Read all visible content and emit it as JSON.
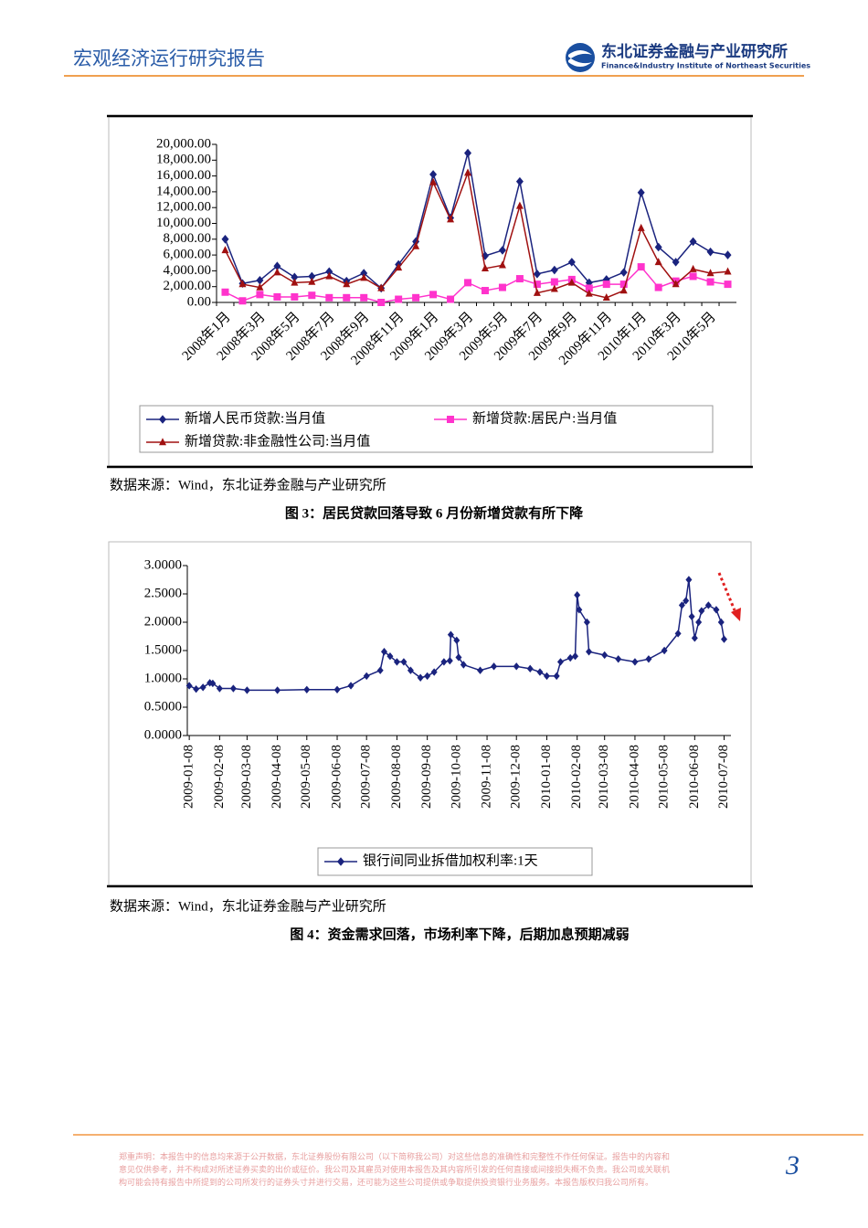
{
  "header": {
    "title": "宏观经济运行研究报告",
    "logo_cn": "东北证券金融与产业研究所",
    "logo_en": "Finance&Industry Institute of Northeast Securities"
  },
  "source_1": "数据来源：Wind，东北证券金融与产业研究所",
  "caption_1": "图 3：居民贷款回落导致 6 月份新增贷款有所下降",
  "source_2": "数据来源：Wind，东北证券金融与产业研究所",
  "caption_2": "图 4：资金需求回落，市场利率下降，后期加息预期减弱",
  "footer": {
    "disclaimer": [
      "郑重声明：本报告中的信息均来源于公开数据，东北证券股份有限公司（以下简称我公司）对这些信息的准确性和完整性不作任何保证。报告中的内容和",
      "意见仅供参考，并不构成对所述证券买卖的出价或征价。我公司及其雇员对使用本报告及其内容所引发的任何直接或间接损失概不负责。我公司或关联机",
      "构可能会持有报告中所提到的公司所发行的证券头寸并进行交易，还可能为这些公司提供或争取提供投资银行业务服务。本报告版权归我公司所有。"
    ],
    "page": "3"
  },
  "chart_data": [
    {
      "type": "line",
      "categories": [
        "2008年1月",
        null,
        "2008年3月",
        null,
        "2008年5月",
        null,
        "2008年7月",
        null,
        "2008年9月",
        null,
        "2008年11月",
        null,
        "2009年1月",
        null,
        "2009年3月",
        null,
        "2009年5月",
        null,
        "2009年7月",
        null,
        "2009年9月",
        null,
        "2009年11月",
        null,
        "2010年1月",
        null,
        "2010年3月",
        null,
        "2010年5月",
        null
      ],
      "ylim": [
        0,
        20000
      ],
      "yticks": [
        {
          "value": 0,
          "label": "0.00"
        },
        {
          "value": 2000,
          "label": "2,000.00"
        },
        {
          "value": 4000,
          "label": "4,000.00"
        },
        {
          "value": 6000,
          "label": "6,000.00"
        },
        {
          "value": 8000,
          "label": "8,000.00"
        },
        {
          "value": 10000,
          "label": "10,000.00"
        },
        {
          "value": 12000,
          "label": "12,000.00"
        },
        {
          "value": 14000,
          "label": "14,000.00"
        },
        {
          "value": 16000,
          "label": "16,000.00"
        },
        {
          "value": 18000,
          "label": "18,000.00"
        },
        {
          "value": 20000,
          "label": "20,000.00"
        }
      ],
      "series": [
        {
          "name": "新增人民币贷款:当月值",
          "color": "#1a237e",
          "marker": "diamond",
          "values": [
            8000,
            2400,
            2800,
            4600,
            3200,
            3300,
            3900,
            2700,
            3700,
            1800,
            4800,
            7700,
            16200,
            10700,
            18900,
            5900,
            6600,
            15300,
            3600,
            4100,
            5100,
            2500,
            2900,
            3800,
            13900,
            7000,
            5100,
            7700,
            6400,
            6000
          ]
        },
        {
          "name": "新增贷款:居民户:当月值",
          "color": "#ff33cc",
          "marker": "square",
          "values": [
            1300,
            200,
            1000,
            700,
            700,
            900,
            600,
            600,
            600,
            0,
            400,
            600,
            1000,
            400,
            2500,
            1500,
            1900,
            3000,
            2300,
            2600,
            2900,
            1800,
            2300,
            2300,
            4500,
            1900,
            2700,
            3300,
            2600,
            2300
          ]
        },
        {
          "name": "新增贷款:非金融性公司:当月值",
          "color": "#a01010",
          "marker": "triangle",
          "values": [
            6600,
            2300,
            1900,
            3800,
            2500,
            2600,
            3300,
            2300,
            3100,
            1800,
            4400,
            7100,
            15200,
            10500,
            16400,
            4300,
            4700,
            12200,
            1200,
            1700,
            2500,
            1100,
            600,
            1500,
            9400,
            5100,
            2300,
            4200,
            3700,
            3900
          ]
        }
      ]
    },
    {
      "type": "line",
      "xlim": [
        "2009-01-06",
        "2010-07-15"
      ],
      "xticks": [
        "2009-01-08",
        "2009-02-08",
        "2009-03-08",
        "2009-04-08",
        "2009-05-08",
        "2009-06-08",
        "2009-07-08",
        "2009-08-08",
        "2009-09-08",
        "2009-10-08",
        "2009-11-08",
        "2009-12-08",
        "2010-01-08",
        "2010-02-08",
        "2010-03-08",
        "2010-04-08",
        "2010-05-08",
        "2010-06-08",
        "2010-07-08"
      ],
      "ylim": [
        0,
        3
      ],
      "yticks": [
        {
          "value": 0,
          "label": "0.0000"
        },
        {
          "value": 0.5,
          "label": "0.5000"
        },
        {
          "value": 1,
          "label": "1.0000"
        },
        {
          "value": 1.5,
          "label": "1.5000"
        },
        {
          "value": 2,
          "label": "2.0000"
        },
        {
          "value": 2.5,
          "label": "2.5000"
        },
        {
          "value": 3,
          "label": "3.0000"
        }
      ],
      "series": [
        {
          "name": "银行间同业拆借加权利率:1天",
          "color": "#1a237e",
          "marker": "diamond",
          "x": [
            "2009-01-08",
            "2009-01-15",
            "2009-01-22",
            "2009-01-29",
            "2009-02-01",
            "2009-02-08",
            "2009-02-22",
            "2009-03-08",
            "2009-04-08",
            "2009-05-08",
            "2009-06-08",
            "2009-06-22",
            "2009-07-08",
            "2009-07-22",
            "2009-07-26",
            "2009-08-01",
            "2009-08-08",
            "2009-08-15",
            "2009-08-22",
            "2009-09-01",
            "2009-09-08",
            "2009-09-15",
            "2009-09-25",
            "2009-10-01",
            "2009-10-02",
            "2009-10-08",
            "2009-10-10",
            "2009-10-15",
            "2009-11-01",
            "2009-11-15",
            "2009-12-08",
            "2009-12-22",
            "2010-01-01",
            "2010-01-08",
            "2010-01-18",
            "2010-01-22",
            "2010-02-01",
            "2010-02-06",
            "2010-02-08",
            "2010-02-10",
            "2010-02-18",
            "2010-02-20",
            "2010-03-08",
            "2010-03-22",
            "2010-04-08",
            "2010-04-22",
            "2010-05-08",
            "2010-05-22",
            "2010-05-26",
            "2010-05-30",
            "2010-06-02",
            "2010-06-05",
            "2010-06-08",
            "2010-06-12",
            "2010-06-15",
            "2010-06-22",
            "2010-06-30",
            "2010-07-05",
            "2010-07-08"
          ],
          "values": [
            0.88,
            0.82,
            0.85,
            0.93,
            0.92,
            0.83,
            0.83,
            0.8,
            0.8,
            0.81,
            0.81,
            0.88,
            1.05,
            1.15,
            1.48,
            1.4,
            1.3,
            1.3,
            1.15,
            1.02,
            1.05,
            1.12,
            1.3,
            1.32,
            1.78,
            1.68,
            1.38,
            1.25,
            1.15,
            1.22,
            1.22,
            1.18,
            1.12,
            1.05,
            1.05,
            1.3,
            1.37,
            1.4,
            2.48,
            2.22,
            2.0,
            1.48,
            1.42,
            1.35,
            1.3,
            1.35,
            1.5,
            1.8,
            2.3,
            2.38,
            2.75,
            2.1,
            1.72,
            2.0,
            2.2,
            2.3,
            2.22,
            2.0,
            1.7
          ]
        }
      ]
    }
  ]
}
